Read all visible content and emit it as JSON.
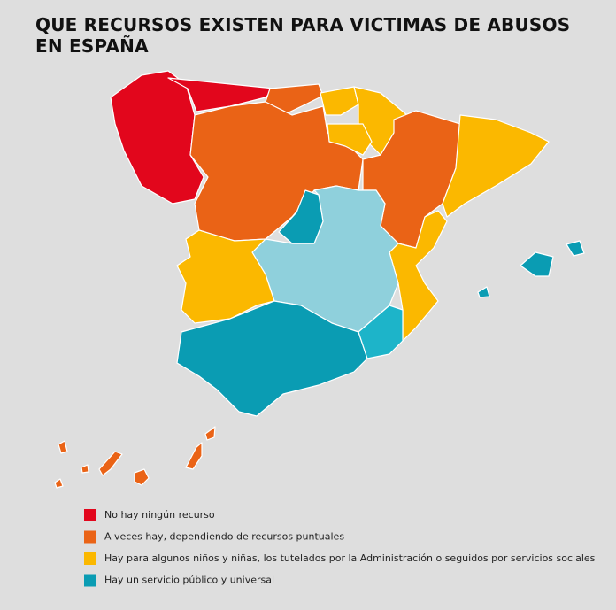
{
  "title": "QUE RECURSOS EXISTEN PARA VICTIMAS DE ABUSOS EN ESPAÑA",
  "legend": [
    {
      "label": "No hay ningún recurso",
      "color": "#e2061c"
    },
    {
      "label": "A veces hay, dependiendo de recursos puntuales",
      "color": "#ea6316"
    },
    {
      "label": "Hay para algunos niños y niñas, los tutelados por la Administración o seguidos por servicios sociales",
      "color": "#fbb800"
    },
    {
      "label": "Hay un servicio público y universal",
      "color": "#0a9cb3"
    }
  ]
}
